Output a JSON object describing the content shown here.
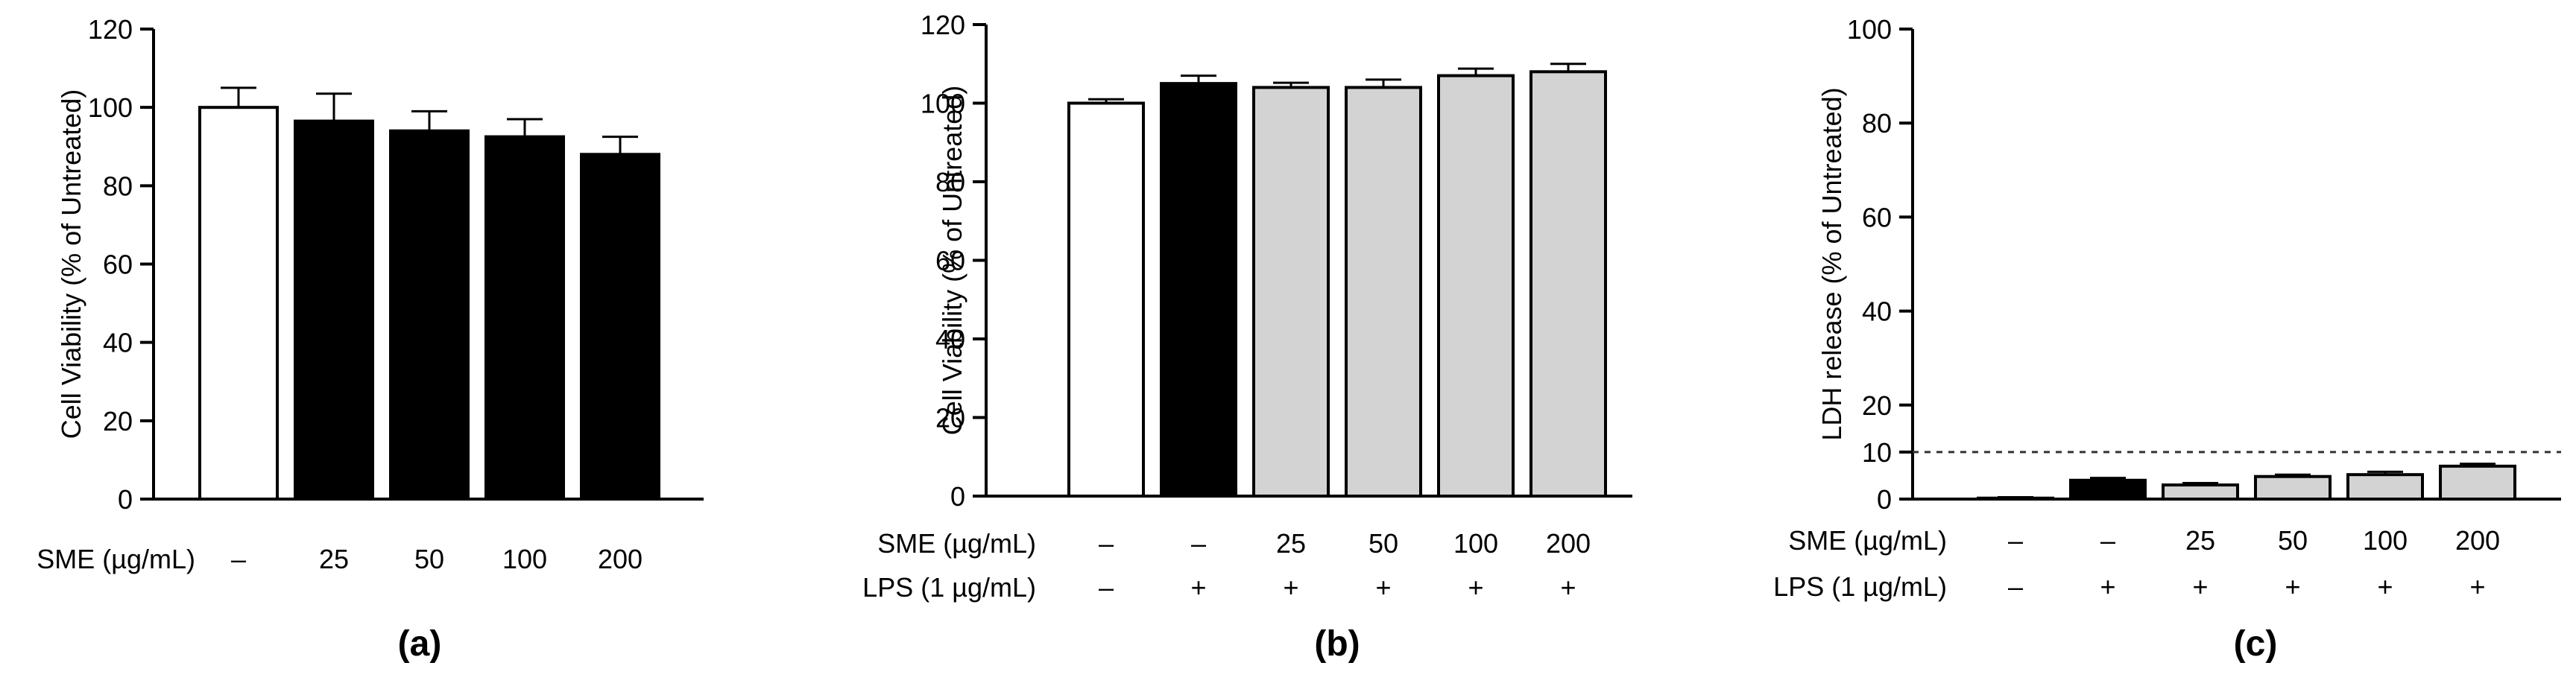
{
  "chart_data": [
    {
      "panel": "(a)",
      "type": "bar",
      "ylabel": "Cell Viability (% of Untreated)",
      "ylim": [
        0,
        120
      ],
      "yticks": [
        0,
        20,
        40,
        60,
        80,
        100,
        120
      ],
      "row_labels": [
        "SME (µg/mL)"
      ],
      "categories": [
        [
          "–"
        ],
        [
          "25"
        ],
        [
          "50"
        ],
        [
          "100"
        ],
        [
          "200"
        ]
      ],
      "values": [
        100,
        96.5,
        94,
        92.5,
        88
      ],
      "errors": [
        5,
        7,
        5,
        4.5,
        4.5
      ],
      "fills": [
        "#ffffff",
        "#000000",
        "#000000",
        "#000000",
        "#000000"
      ]
    },
    {
      "panel": "(b)",
      "type": "bar",
      "ylabel": "Cell Viability (% of Untreated)",
      "ylim": [
        0,
        120
      ],
      "yticks": [
        0,
        20,
        40,
        60,
        80,
        100,
        120
      ],
      "row_labels": [
        "SME (µg/mL)",
        "LPS (1 µg/mL)"
      ],
      "categories": [
        [
          "–",
          "–"
        ],
        [
          "–",
          "+"
        ],
        [
          "25",
          "+"
        ],
        [
          "50",
          "+"
        ],
        [
          "100",
          "+"
        ],
        [
          "200",
          "+"
        ]
      ],
      "values": [
        100,
        105,
        104,
        104,
        107,
        108
      ],
      "errors": [
        1,
        2,
        1.2,
        2,
        1.8,
        2
      ],
      "fills": [
        "#ffffff",
        "#000000",
        "#d3d3d3",
        "#d3d3d3",
        "#d3d3d3",
        "#d3d3d3"
      ]
    },
    {
      "panel": "(c)",
      "type": "bar",
      "ylabel": "LDH release (% of Untreated)",
      "ylim": [
        0,
        100
      ],
      "yticks": [
        0,
        10,
        20,
        40,
        60,
        80,
        100
      ],
      "reference_line": 10,
      "row_labels": [
        "SME (µg/mL)",
        "LPS (1 µg/mL)"
      ],
      "categories": [
        [
          "–",
          "–"
        ],
        [
          "–",
          "+"
        ],
        [
          "25",
          "+"
        ],
        [
          "50",
          "+"
        ],
        [
          "100",
          "+"
        ],
        [
          "200",
          "+"
        ]
      ],
      "values": [
        0.2,
        4,
        3,
        4.8,
        5.2,
        7
      ],
      "errors": [
        0.2,
        0.5,
        0.4,
        0.4,
        0.6,
        0.5
      ],
      "fills": [
        "#ffffff",
        "#000000",
        "#d3d3d3",
        "#d3d3d3",
        "#d3d3d3",
        "#d3d3d3"
      ]
    }
  ]
}
